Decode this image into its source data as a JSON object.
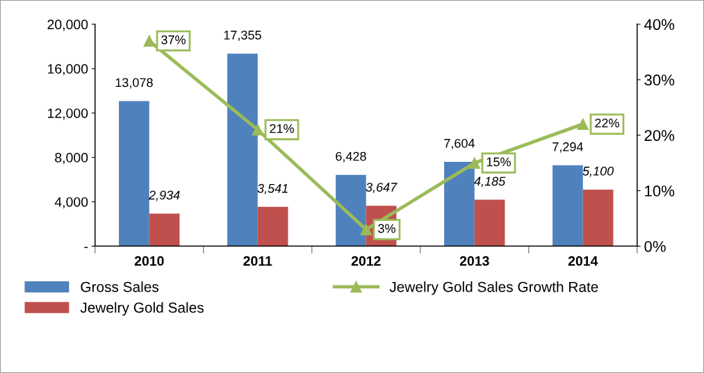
{
  "chart_data": {
    "type": "bar",
    "categories": [
      "2010",
      "2011",
      "2012",
      "2013",
      "2014"
    ],
    "series": [
      {
        "name": "Gross Sales",
        "color": "#4f81bd",
        "values": [
          13078,
          17355,
          6428,
          7604,
          7294
        ],
        "value_labels": [
          "13,078",
          "17,355",
          "6,428",
          "7,604",
          "7,294"
        ]
      },
      {
        "name": "Jewelry Gold Sales",
        "color": "#c0504d",
        "values": [
          2934,
          3541,
          3647,
          4185,
          5100
        ],
        "value_labels": [
          "2,934",
          "3,541",
          "3,647",
          "4,185",
          "5,100"
        ]
      },
      {
        "name": "Jewelry Gold Sales Growth Rate",
        "type": "line",
        "axis": "y2",
        "color": "#9bbb59",
        "marker": "triangle",
        "values": [
          37,
          21,
          3,
          15,
          22
        ],
        "value_labels": [
          "37%",
          "21%",
          "3%",
          "15%",
          "22%"
        ]
      }
    ],
    "ylim": [
      0,
      20000
    ],
    "yticks": [
      {
        "value": 0,
        "label": "-"
      },
      {
        "value": 4000,
        "label": "4,000"
      },
      {
        "value": 8000,
        "label": "8,000"
      },
      {
        "value": 12000,
        "label": "12,000"
      },
      {
        "value": 16000,
        "label": "16,000"
      },
      {
        "value": 20000,
        "label": "20,000"
      }
    ],
    "y2lim": [
      0,
      40
    ],
    "y2ticks": [
      {
        "value": 0,
        "label": "0%"
      },
      {
        "value": 10,
        "label": "10%"
      },
      {
        "value": 20,
        "label": "20%"
      },
      {
        "value": 30,
        "label": "30%"
      },
      {
        "value": 40,
        "label": "40%"
      }
    ],
    "grid": false,
    "legend": "bottom"
  }
}
